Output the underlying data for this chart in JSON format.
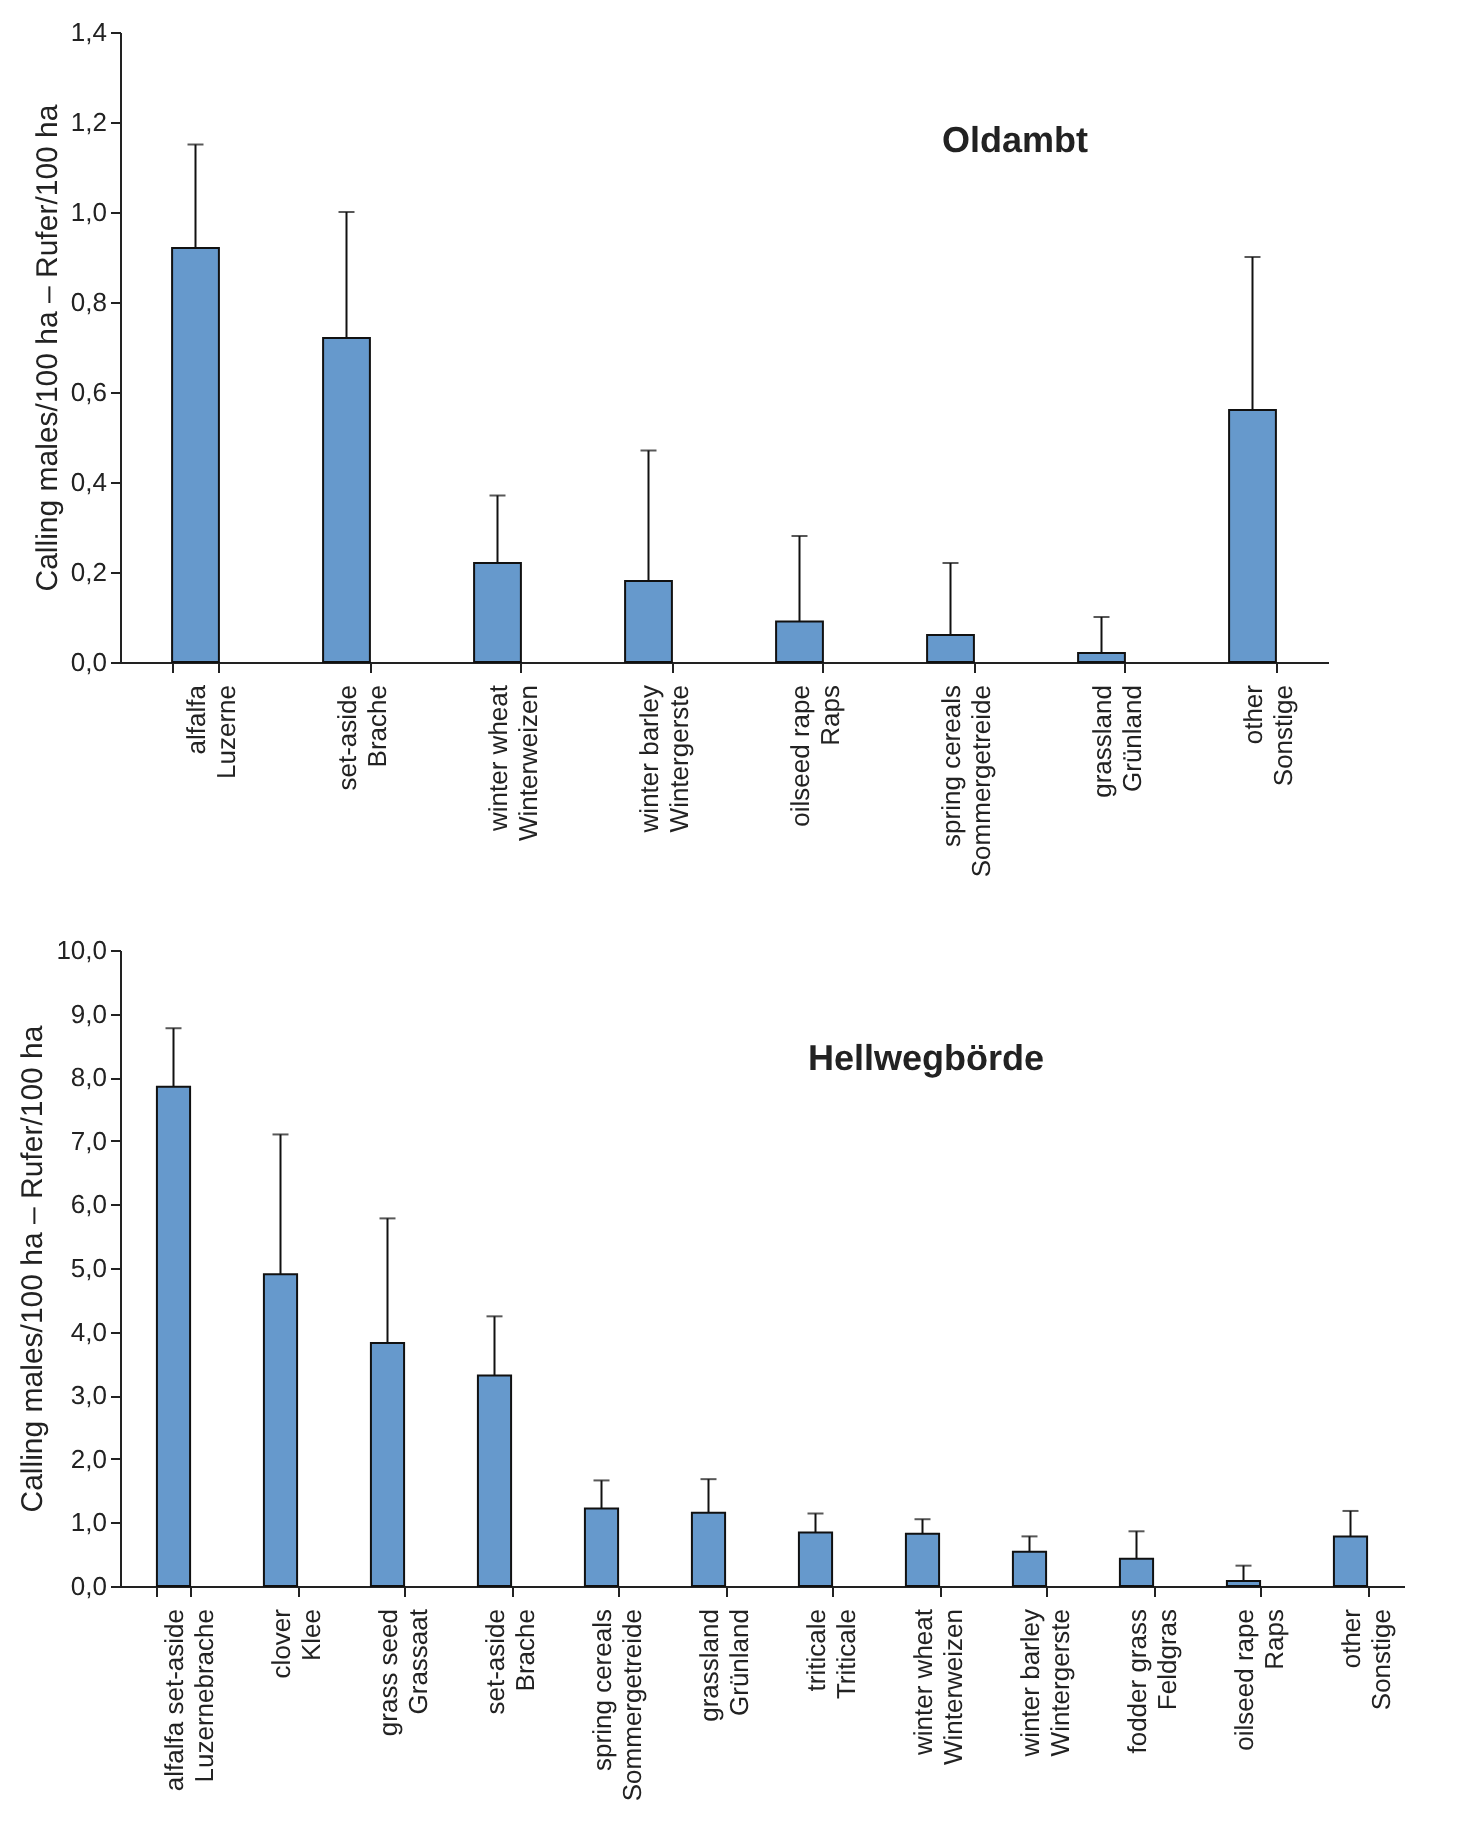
{
  "chart_data": [
    {
      "type": "bar",
      "title": "Oldambt",
      "ylabel": "Calling males/100 ha – Rufer/100 ha",
      "categories": [
        "alfalfa\nLuzerne",
        "set-aside\nBrache",
        "winter wheat\nWinterweizen",
        "winter barley\nWintergerste",
        "oilseed rape\nRaps",
        "spring cereals\nSommergetreide",
        "grassland\nGrünland",
        "other\nSonstige"
      ],
      "values": [
        0.92,
        0.72,
        0.22,
        0.18,
        0.09,
        0.06,
        0.02,
        0.56
      ],
      "errors": [
        [
          0.92,
          1.15
        ],
        [
          0.72,
          1.0
        ],
        [
          0.22,
          0.37
        ],
        [
          0.18,
          0.47
        ],
        [
          0.09,
          0.28
        ],
        [
          0.06,
          0.22
        ],
        [
          0.02,
          0.1
        ],
        [
          0.56,
          0.9
        ]
      ],
      "color": "#6699cc",
      "ylim": [
        0,
        1.4
      ],
      "yticks": [
        {
          "value": 0,
          "label": "0,0"
        },
        {
          "value": 0.2,
          "label": "0,2"
        },
        {
          "value": 0.4,
          "label": "0,4"
        },
        {
          "value": 0.6,
          "label": "0,6"
        },
        {
          "value": 0.8,
          "label": "0,8"
        },
        {
          "value": 1.0,
          "label": "1,0"
        },
        {
          "value": 1.2,
          "label": "1,2"
        },
        {
          "value": 1.4,
          "label": "1,4"
        }
      ]
    },
    {
      "type": "bar",
      "title": "Hellwegbörde",
      "ylabel": "Calling males/100 ha – Rufer/100 ha",
      "categories": [
        "alfalfa set-aside\nLuzernebrache",
        "clover\nKlee",
        "grass seed\nGrassaat",
        "set-aside\nBrache",
        "spring cereals\nSommergetreide",
        "grassland\nGrünland",
        "triticale\nTriticale",
        "winter wheat\nWinterweizen",
        "winter barley\nWintergerste",
        "fodder grass\nFeldgras",
        "oilseed rape\nRaps",
        "other\nSonstige"
      ],
      "values": [
        7.85,
        4.9,
        3.82,
        3.31,
        1.22,
        1.15,
        0.84,
        0.82,
        0.54,
        0.43,
        0.08,
        0.78
      ],
      "errors": [
        [
          7.85,
          8.77
        ],
        [
          4.9,
          7.1
        ],
        [
          3.82,
          5.78
        ],
        [
          3.31,
          4.24
        ],
        [
          1.22,
          1.66
        ],
        [
          1.15,
          1.68
        ],
        [
          0.84,
          1.14
        ],
        [
          0.82,
          1.05
        ],
        [
          0.54,
          0.78
        ],
        [
          0.43,
          0.86
        ],
        [
          0.08,
          0.32
        ],
        [
          0.78,
          1.18
        ]
      ],
      "color": "#6699cc",
      "ylim": [
        0,
        10
      ],
      "yticks": [
        {
          "value": 0,
          "label": "0,0"
        },
        {
          "value": 1,
          "label": "1,0"
        },
        {
          "value": 2,
          "label": "2,0"
        },
        {
          "value": 3,
          "label": "3,0"
        },
        {
          "value": 4,
          "label": "4,0"
        },
        {
          "value": 5,
          "label": "5,0"
        },
        {
          "value": 6,
          "label": "6,0"
        },
        {
          "value": 7,
          "label": "7,0"
        },
        {
          "value": 8,
          "label": "8,0"
        },
        {
          "value": 9,
          "label": "9,0"
        },
        {
          "value": 10,
          "label": "10,0"
        }
      ]
    }
  ]
}
